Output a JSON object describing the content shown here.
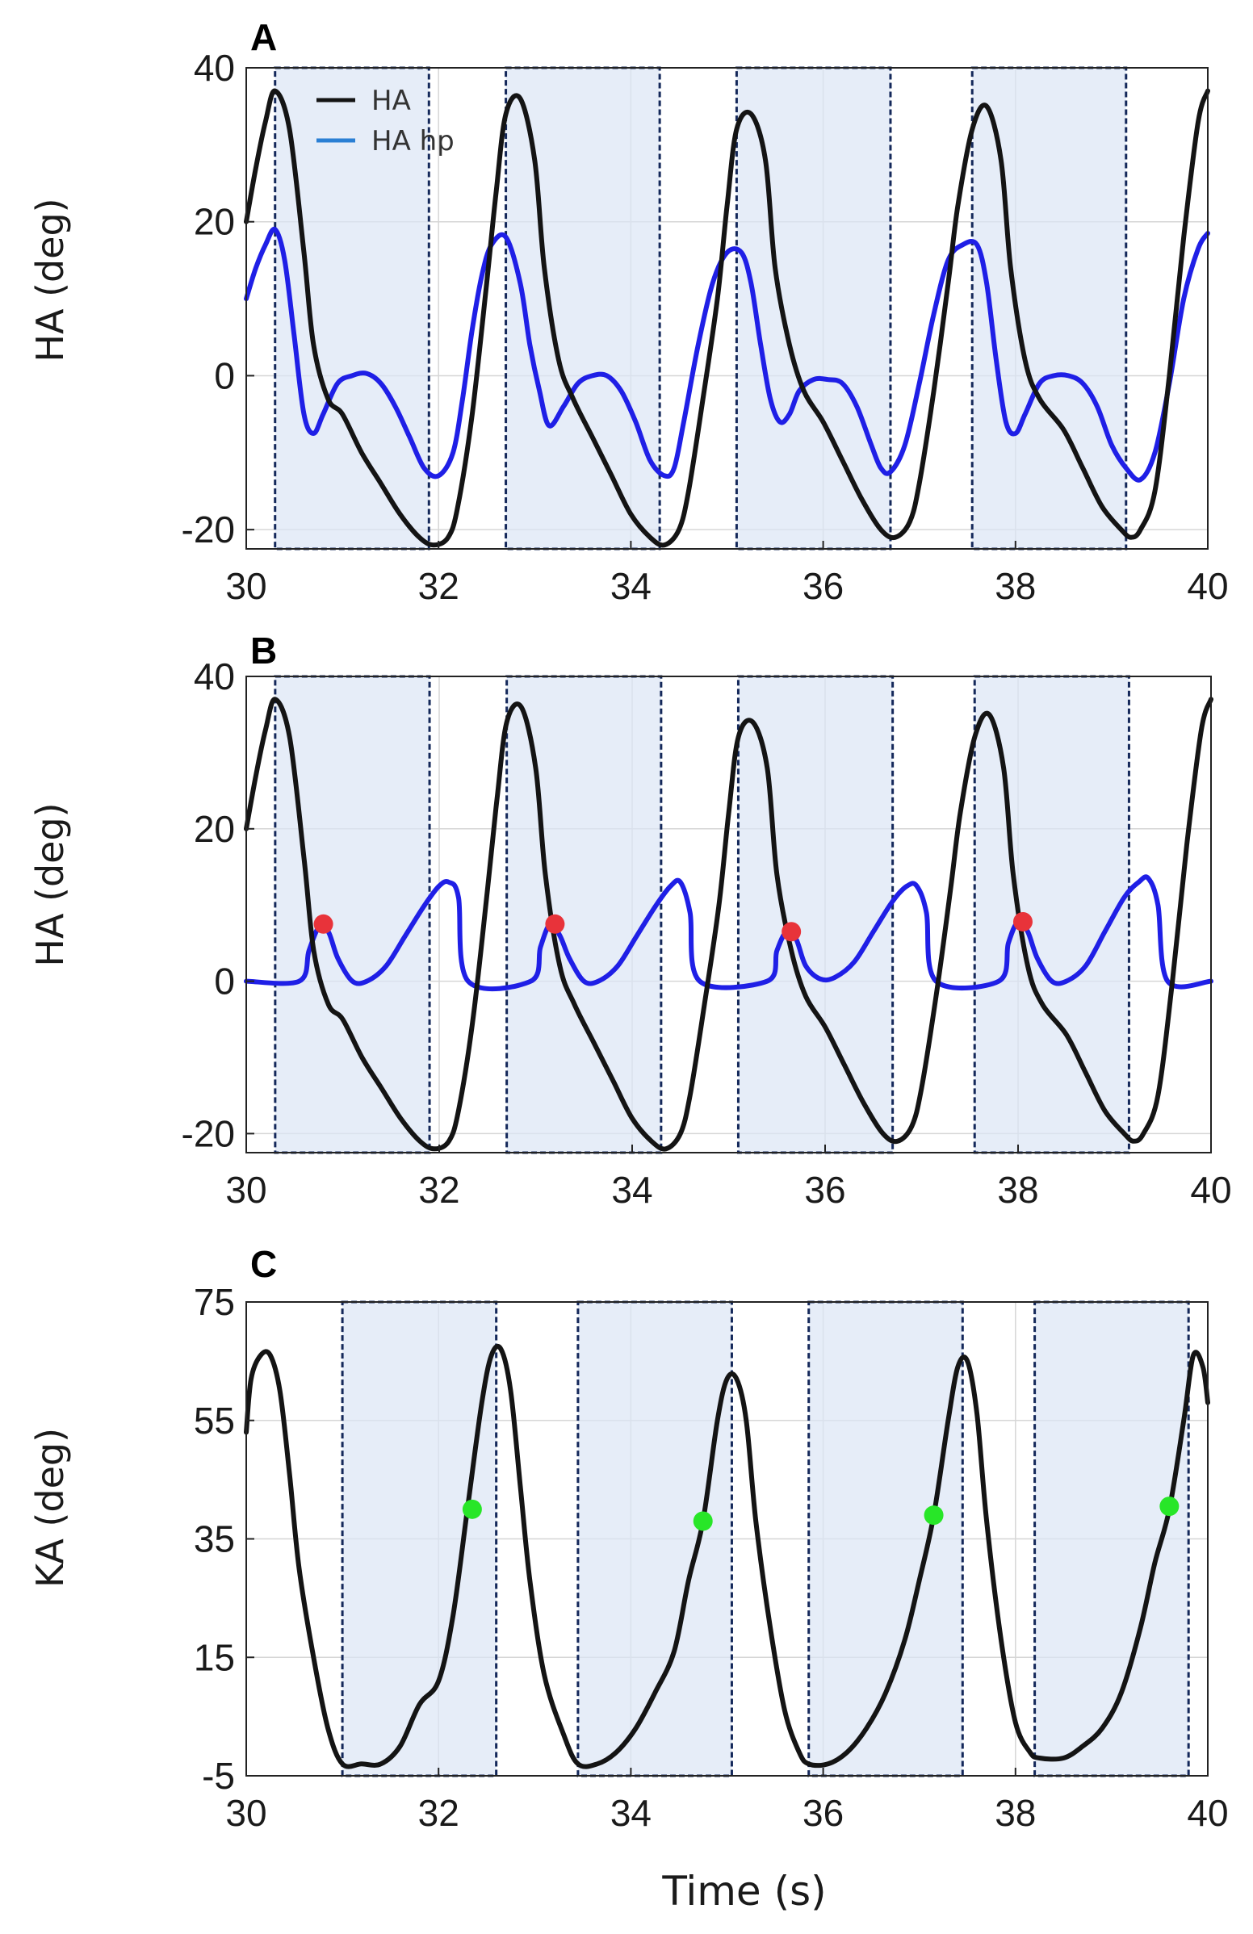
{
  "chart_data": [
    {
      "panel": "A",
      "type": "line",
      "ylabel": "HA (deg)",
      "xlabel": "",
      "xlim": [
        30,
        40
      ],
      "ylim": [
        -22.5,
        40
      ],
      "xticks": [
        "30",
        "32",
        "34",
        "36",
        "38",
        "40"
      ],
      "yticks": [
        "-20",
        "0",
        "20",
        "40"
      ],
      "xtick_values": [
        30,
        32,
        34,
        36,
        38,
        40
      ],
      "ytick_values": [
        -20,
        0,
        20,
        40
      ],
      "grid": true,
      "legend": {
        "position": "top-left",
        "entries": [
          "HA",
          "HA hp"
        ]
      },
      "windows": [
        [
          30.3,
          31.9
        ],
        [
          32.7,
          34.3
        ],
        [
          35.1,
          36.7
        ],
        [
          37.55,
          39.15
        ]
      ],
      "series": [
        {
          "name": "HA",
          "color": "#141414",
          "x": [
            30.0,
            30.1,
            30.2,
            30.3,
            30.45,
            30.6,
            30.7,
            30.85,
            31.0,
            31.2,
            31.4,
            31.6,
            31.8,
            31.95,
            32.1,
            32.2,
            32.35,
            32.5,
            32.6,
            32.7,
            32.85,
            33.0,
            33.1,
            33.25,
            33.4,
            33.6,
            33.8,
            34.0,
            34.2,
            34.35,
            34.5,
            34.6,
            34.75,
            34.9,
            35.0,
            35.1,
            35.25,
            35.4,
            35.5,
            35.65,
            35.8,
            36.0,
            36.2,
            36.4,
            36.6,
            36.75,
            36.9,
            37.0,
            37.15,
            37.3,
            37.4,
            37.55,
            37.7,
            37.85,
            37.95,
            38.1,
            38.25,
            38.5,
            38.7,
            38.9,
            39.1,
            39.2,
            39.3,
            39.45,
            39.6,
            39.75,
            39.9,
            40.0
          ],
          "y": [
            20,
            27,
            33,
            37,
            32,
            16,
            4,
            -3,
            -5,
            -10,
            -14,
            -18,
            -21,
            -22,
            -21,
            -17,
            -5,
            12,
            24,
            34,
            36,
            28,
            14,
            2,
            -3,
            -8,
            -13,
            -18,
            -21,
            -22,
            -20,
            -15,
            -3,
            10,
            22,
            32,
            34,
            28,
            14,
            4,
            -2,
            -6,
            -11,
            -16,
            -20,
            -21,
            -19,
            -14,
            -2,
            12,
            22,
            32,
            35,
            28,
            14,
            2,
            -3,
            -7,
            -12,
            -17,
            -20,
            -21,
            -20,
            -15,
            0,
            18,
            33,
            37
          ]
        },
        {
          "name": "HA hp",
          "color": "#1f1fe6",
          "x": [
            30.0,
            30.1,
            30.2,
            30.3,
            30.4,
            30.5,
            30.6,
            30.7,
            30.8,
            30.95,
            31.1,
            31.25,
            31.4,
            31.55,
            31.7,
            31.85,
            32.0,
            32.15,
            32.25,
            32.35,
            32.45,
            32.55,
            32.7,
            32.85,
            32.95,
            33.05,
            33.15,
            33.3,
            33.45,
            33.6,
            33.75,
            33.9,
            34.05,
            34.2,
            34.35,
            34.45,
            34.55,
            34.7,
            34.85,
            35.0,
            35.15,
            35.25,
            35.35,
            35.45,
            35.55,
            35.65,
            35.75,
            35.9,
            36.05,
            36.2,
            36.35,
            36.5,
            36.6,
            36.7,
            36.85,
            37.0,
            37.15,
            37.3,
            37.45,
            37.6,
            37.7,
            37.8,
            37.9,
            38.0,
            38.1,
            38.25,
            38.4,
            38.55,
            38.7,
            38.85,
            39.0,
            39.15,
            39.3,
            39.45,
            39.6,
            39.75,
            39.9,
            40.0
          ],
          "y": [
            10,
            14,
            17,
            19,
            15,
            5,
            -5,
            -7.5,
            -5,
            -1,
            0,
            0.3,
            -1,
            -4,
            -8,
            -12,
            -13,
            -10,
            -3,
            6,
            13,
            17,
            18,
            12,
            4,
            -2,
            -6.5,
            -4,
            -1,
            0,
            0,
            -2,
            -6,
            -11,
            -13,
            -12,
            -6,
            4,
            12,
            16,
            16,
            12,
            4,
            -3,
            -6,
            -5,
            -2,
            -0.5,
            -0.5,
            -1,
            -4,
            -9,
            -12,
            -12.5,
            -9,
            -1,
            8,
            15,
            17,
            17,
            12,
            2,
            -6,
            -7.5,
            -5,
            -1,
            0,
            0,
            -1,
            -4,
            -9,
            -12,
            -13.5,
            -10,
            -1,
            10,
            16.5,
            18.5
          ]
        }
      ]
    },
    {
      "panel": "B",
      "type": "line",
      "ylabel": "HA (deg)",
      "xlabel": "",
      "xlim": [
        30,
        40
      ],
      "ylim": [
        -22.5,
        40
      ],
      "xticks": [
        "30",
        "32",
        "34",
        "36",
        "38",
        "40"
      ],
      "yticks": [
        "-20",
        "0",
        "20",
        "40"
      ],
      "xtick_values": [
        30,
        32,
        34,
        36,
        38,
        40
      ],
      "ytick_values": [
        -20,
        0,
        20,
        40
      ],
      "grid": true,
      "windows": [
        [
          30.3,
          31.9
        ],
        [
          32.7,
          34.3
        ],
        [
          35.1,
          36.7
        ],
        [
          37.55,
          39.15
        ]
      ],
      "markers": {
        "color": "#e8333a",
        "x": [
          30.8,
          33.2,
          35.65,
          38.05
        ],
        "y": [
          7.5,
          7.5,
          6.5,
          7.8
        ]
      },
      "series": [
        {
          "name": "HA",
          "color": "#141414",
          "x": [
            30.0,
            30.1,
            30.2,
            30.3,
            30.45,
            30.6,
            30.7,
            30.85,
            31.0,
            31.2,
            31.4,
            31.6,
            31.8,
            31.95,
            32.1,
            32.2,
            32.35,
            32.5,
            32.6,
            32.7,
            32.85,
            33.0,
            33.1,
            33.25,
            33.4,
            33.6,
            33.8,
            34.0,
            34.2,
            34.35,
            34.5,
            34.6,
            34.75,
            34.9,
            35.0,
            35.1,
            35.25,
            35.4,
            35.5,
            35.65,
            35.8,
            36.0,
            36.2,
            36.4,
            36.6,
            36.75,
            36.9,
            37.0,
            37.15,
            37.3,
            37.4,
            37.55,
            37.7,
            37.85,
            37.95,
            38.1,
            38.25,
            38.5,
            38.7,
            38.9,
            39.1,
            39.2,
            39.3,
            39.45,
            39.6,
            39.75,
            39.9,
            40.0
          ],
          "y": [
            20,
            27,
            33,
            37,
            32,
            16,
            4,
            -3,
            -5,
            -10,
            -14,
            -18,
            -21,
            -22,
            -21,
            -17,
            -5,
            12,
            24,
            34,
            36,
            28,
            14,
            2,
            -3,
            -8,
            -13,
            -18,
            -21,
            -22,
            -20,
            -15,
            -3,
            10,
            22,
            32,
            34,
            28,
            14,
            4,
            -2,
            -6,
            -11,
            -16,
            -20,
            -21,
            -19,
            -14,
            -2,
            12,
            22,
            32,
            35,
            28,
            14,
            2,
            -3,
            -7,
            -12,
            -17,
            -20,
            -21,
            -20,
            -15,
            0,
            18,
            33,
            37
          ]
        },
        {
          "name": "HA hp",
          "color": "#1f1fe6",
          "x": [
            30.0,
            30.55,
            30.65,
            30.75,
            30.85,
            30.95,
            31.1,
            31.25,
            31.45,
            31.65,
            31.85,
            32.0,
            32.1,
            32.2,
            32.3,
            32.95,
            33.05,
            33.15,
            33.25,
            33.35,
            33.5,
            33.65,
            33.85,
            34.05,
            34.25,
            34.4,
            34.5,
            34.6,
            34.7,
            35.4,
            35.5,
            35.6,
            35.7,
            35.8,
            35.95,
            36.1,
            36.3,
            36.5,
            36.7,
            36.85,
            36.95,
            37.05,
            37.15,
            37.8,
            37.9,
            38.0,
            38.1,
            38.2,
            38.35,
            38.5,
            38.7,
            38.9,
            39.1,
            39.25,
            39.35,
            39.45,
            39.55,
            40.0
          ],
          "y": [
            0,
            0,
            4,
            7,
            6.5,
            3,
            0,
            0,
            2,
            6,
            10,
            12.5,
            13,
            11,
            0,
            0,
            4.5,
            7.5,
            6,
            3,
            0,
            0,
            2,
            6,
            10,
            12.5,
            13,
            9,
            0,
            0,
            4,
            6.5,
            5.5,
            2,
            0.3,
            0.5,
            2.5,
            6.5,
            10.5,
            12.5,
            12.5,
            9,
            0,
            0,
            5,
            7.8,
            6.5,
            3,
            0,
            0,
            2,
            6.5,
            11,
            13,
            13.5,
            10,
            0,
            0
          ]
        }
      ]
    },
    {
      "panel": "C",
      "type": "line",
      "ylabel": "KA (deg)",
      "xlabel": "Time (s)",
      "xlim": [
        30,
        40
      ],
      "ylim": [
        -5,
        75
      ],
      "xticks": [
        "30",
        "32",
        "34",
        "36",
        "38",
        "40"
      ],
      "yticks": [
        "-5",
        "15",
        "35",
        "55",
        "75"
      ],
      "xtick_values": [
        30,
        32,
        34,
        36,
        38,
        40
      ],
      "ytick_values": [
        -5,
        15,
        35,
        55,
        75
      ],
      "grid": true,
      "windows": [
        [
          31.0,
          32.6
        ],
        [
          33.45,
          35.05
        ],
        [
          35.85,
          37.45
        ],
        [
          38.2,
          39.8
        ]
      ],
      "markers": {
        "color": "#28e628",
        "x": [
          32.35,
          34.75,
          37.15,
          39.6
        ],
        "y": [
          40,
          38,
          39,
          40.5
        ]
      },
      "series": [
        {
          "name": "KA",
          "color": "#141414",
          "x": [
            30.0,
            30.05,
            30.15,
            30.25,
            30.35,
            30.45,
            30.55,
            30.7,
            30.85,
            31.0,
            31.2,
            31.4,
            31.6,
            31.8,
            32.0,
            32.15,
            32.3,
            32.45,
            32.55,
            32.65,
            32.75,
            32.85,
            32.95,
            33.1,
            33.3,
            33.45,
            33.65,
            33.85,
            34.05,
            34.25,
            34.45,
            34.6,
            34.75,
            34.9,
            35.0,
            35.1,
            35.2,
            35.3,
            35.45,
            35.6,
            35.75,
            35.85,
            36.05,
            36.25,
            36.45,
            36.65,
            36.85,
            37.0,
            37.15,
            37.3,
            37.4,
            37.5,
            37.6,
            37.7,
            37.85,
            38.0,
            38.15,
            38.25,
            38.5,
            38.7,
            38.9,
            39.1,
            39.3,
            39.45,
            39.6,
            39.75,
            39.85,
            39.95,
            40.0
          ],
          "y": [
            53,
            62,
            66,
            66,
            60,
            46,
            30,
            15,
            3,
            -3,
            -3,
            -3,
            0,
            7,
            11,
            22,
            40,
            58,
            66,
            67,
            60,
            44,
            28,
            12,
            2,
            -3,
            -3,
            -1,
            3,
            9,
            16,
            28,
            38,
            55,
            62,
            62,
            55,
            38,
            20,
            6,
            -1,
            -3,
            -3,
            -1,
            3,
            9,
            18,
            28,
            39,
            55,
            64,
            65,
            56,
            38,
            18,
            4,
            -1,
            -2,
            -2,
            0,
            3,
            9,
            20,
            31,
            40,
            55,
            66,
            64,
            58
          ]
        }
      ]
    }
  ]
}
